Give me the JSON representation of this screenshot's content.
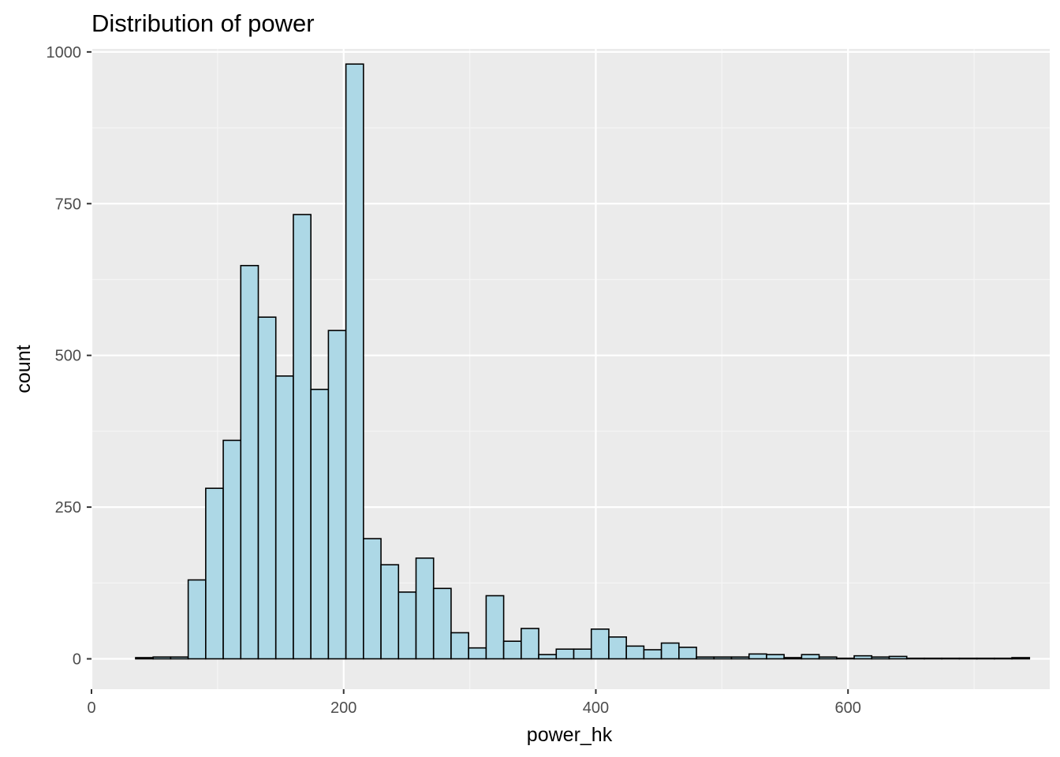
{
  "chart_data": {
    "type": "bar",
    "title": "Distribution of power",
    "xlabel": "power_hk",
    "ylabel": "count",
    "xlim": [
      0,
      760
    ],
    "ylim": [
      -50,
      1005
    ],
    "x_ticks": [
      0,
      200,
      400,
      600
    ],
    "x_tick_labels": [
      "0",
      "200",
      "400",
      "600"
    ],
    "y_ticks": [
      0,
      250,
      500,
      750,
      1000
    ],
    "y_tick_labels": [
      "0",
      "250",
      "500",
      "750",
      "1000"
    ],
    "bin_width": 13.9,
    "bin_start": 35,
    "values": [
      2,
      3,
      3,
      130,
      281,
      360,
      648,
      563,
      466,
      732,
      444,
      541,
      980,
      198,
      155,
      110,
      166,
      116,
      43,
      18,
      104,
      29,
      50,
      7,
      16,
      16,
      49,
      36,
      21,
      15,
      26,
      19,
      3,
      3,
      3,
      8,
      7,
      2,
      7,
      3,
      1,
      5,
      3,
      4,
      1,
      1,
      1,
      1,
      1,
      1,
      2
    ],
    "grid": true,
    "legend": "none",
    "colors": {
      "bar_fill": "#add8e6",
      "bar_stroke": "#000000",
      "panel_background": "#ebebeb",
      "grid_major": "#ffffff",
      "grid_minor": "#f5f5f5"
    }
  }
}
